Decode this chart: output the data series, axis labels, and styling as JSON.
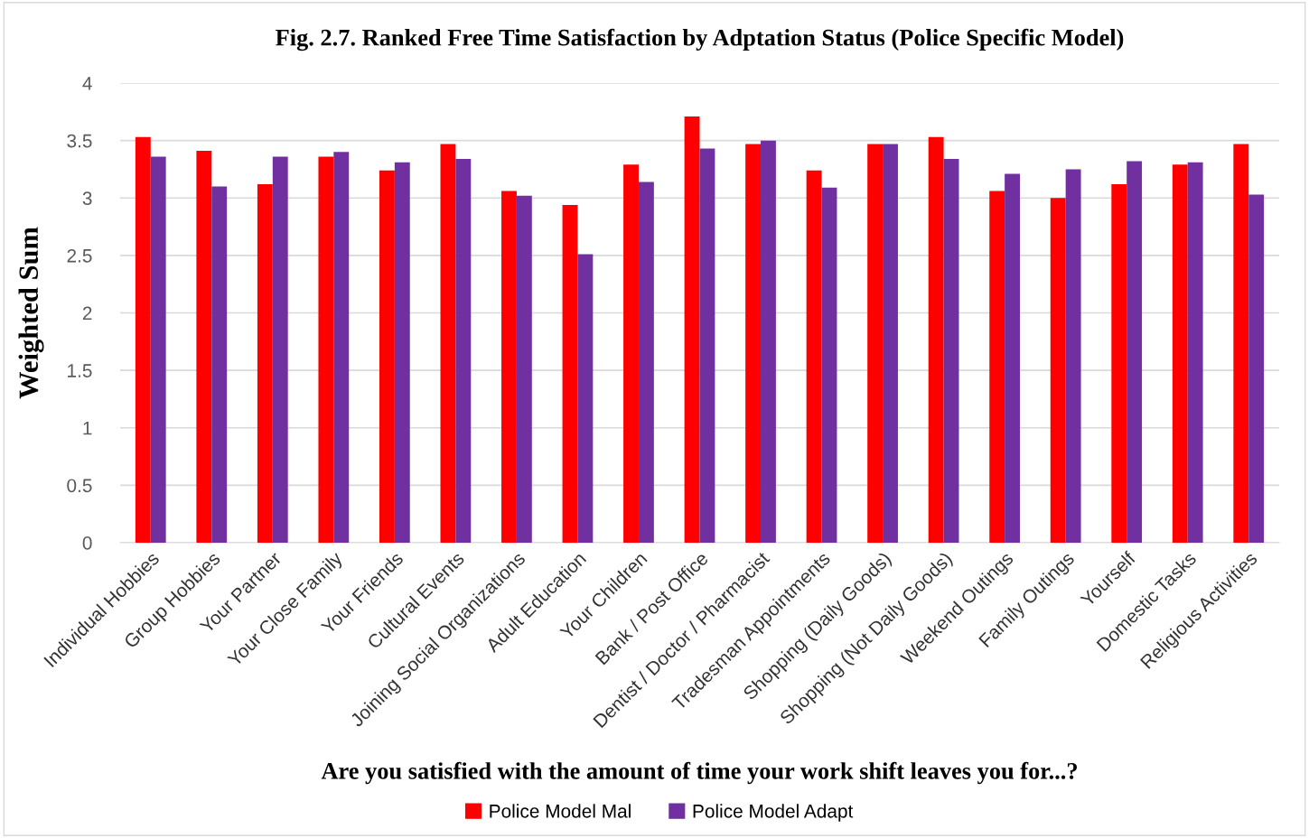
{
  "chart_data": {
    "type": "bar",
    "title": "Fig. 2.7. Ranked Free Time Satisfaction by Adptation Status (Police Specific Model)",
    "xlabel": "Are you satisfied with the amount of time your work shift leaves you for...?",
    "ylabel": "Weighted Sum",
    "categories": [
      "Individual Hobbies",
      "Group Hobbies",
      "Your Partner",
      "Your Close Family",
      "Your Friends",
      "Cultural Events",
      "Joining Social Organizations",
      "Adult Education",
      "Your Children",
      "Bank / Post Office",
      "Dentist / Doctor / Pharmacist",
      "Tradesman Appointments",
      "Shopping (Daily Goods)",
      "Shopping (Not Daily Goods)",
      "Weekend Outings",
      "Family Outings",
      "Yourself",
      "Domestic Tasks",
      "Religious Activities"
    ],
    "series": [
      {
        "name": "Police Model Mal",
        "color": "#ff0000",
        "values": [
          3.53,
          3.41,
          3.12,
          3.36,
          3.24,
          3.47,
          3.06,
          2.94,
          3.29,
          3.71,
          3.47,
          3.24,
          3.47,
          3.53,
          3.06,
          3.0,
          3.12,
          3.29,
          3.47
        ]
      },
      {
        "name": "Police Model Adapt",
        "color": "#7030a0",
        "values": [
          3.36,
          3.1,
          3.36,
          3.4,
          3.31,
          3.34,
          3.02,
          2.51,
          3.14,
          3.43,
          3.5,
          3.09,
          3.47,
          3.34,
          3.21,
          3.25,
          3.32,
          3.31,
          3.03
        ]
      }
    ],
    "ylim": [
      0,
      4
    ],
    "yticks": [
      0,
      {
        "value": 0.5,
        "label": "0.5"
      },
      1,
      {
        "value": 1.5,
        "label": "1.5"
      },
      2,
      {
        "value": 2.5,
        "label": "2.5"
      },
      3,
      {
        "value": 3.5,
        "label": "3.5"
      },
      4
    ],
    "grid": "y",
    "legend": "bottom"
  }
}
